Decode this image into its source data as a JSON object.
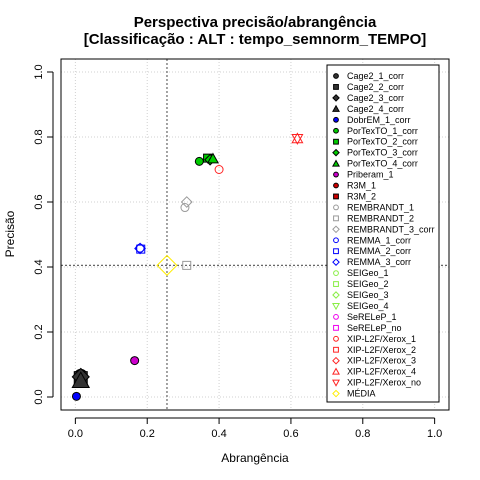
{
  "chart_data": {
    "type": "scatter",
    "title_line1": "Perspectiva precisão/abrangência",
    "title_line2": "[Classificação : ALT : tempo_semnorm_TEMPO]",
    "xlabel": "Abrangência",
    "ylabel": "Precisão",
    "xlim": [
      -0.04,
      1.04
    ],
    "ylim": [
      -0.04,
      1.04
    ],
    "xticks": [
      "0.0",
      "0.2",
      "0.4",
      "0.6",
      "0.8",
      "1.0"
    ],
    "yticks": [
      "0.0",
      "0.2",
      "0.4",
      "0.6",
      "0.8",
      "1.0"
    ],
    "grid": true,
    "reference_lines": {
      "x": 0.255,
      "y": 0.405
    },
    "legend_position": "top-right",
    "series": [
      {
        "name": "Cage2_1_corr",
        "color": "#333333",
        "shape": "circle",
        "filled": true,
        "x": 0.015,
        "y": 0.065
      },
      {
        "name": "Cage2_2_corr",
        "color": "#333333",
        "shape": "square",
        "filled": true,
        "x": 0.015,
        "y": 0.058
      },
      {
        "name": "Cage2_3_corr",
        "color": "#333333",
        "shape": "diamond",
        "filled": true,
        "x": 0.015,
        "y": 0.062
      },
      {
        "name": "Cage2_4_corr",
        "color": "#333333",
        "shape": "triangle-up",
        "filled": true,
        "x": 0.015,
        "y": 0.05
      },
      {
        "name": "DobrEM_1_corr",
        "color": "#0000ff",
        "shape": "circle",
        "filled": true,
        "x": 0.003,
        "y": 0.002
      },
      {
        "name": "PorTexTO_1_corr",
        "color": "#00cc00",
        "shape": "circle",
        "filled": true,
        "x": 0.345,
        "y": 0.725
      },
      {
        "name": "PorTexTO_2_corr",
        "color": "#00cc00",
        "shape": "square",
        "filled": true,
        "x": 0.368,
        "y": 0.735
      },
      {
        "name": "PorTexTO_3_corr",
        "color": "#00cc00",
        "shape": "diamond",
        "filled": true,
        "x": 0.375,
        "y": 0.73
      },
      {
        "name": "PorTexTO_4_corr",
        "color": "#00cc00",
        "shape": "triangle-up",
        "filled": true,
        "x": 0.383,
        "y": 0.733
      },
      {
        "name": "Priberam_1",
        "color": "#cc00cc",
        "shape": "circle",
        "filled": true,
        "x": 0.165,
        "y": 0.112
      },
      {
        "name": "R3M_1",
        "color": "#cc0000",
        "shape": "circle",
        "filled": true,
        "x": null,
        "y": null
      },
      {
        "name": "R3M_2",
        "color": "#cc0000",
        "shape": "square",
        "filled": true,
        "x": null,
        "y": null
      },
      {
        "name": "REMBRANDT_1",
        "color": "#999999",
        "shape": "circle",
        "filled": false,
        "x": 0.305,
        "y": 0.583
      },
      {
        "name": "REMBRANDT_2",
        "color": "#999999",
        "shape": "square",
        "filled": false,
        "x": 0.31,
        "y": 0.405
      },
      {
        "name": "REMBRANDT_3_corr",
        "color": "#999999",
        "shape": "diamond",
        "filled": false,
        "x": 0.31,
        "y": 0.6
      },
      {
        "name": "REMMA_1_corr",
        "color": "#0000ff",
        "shape": "circle",
        "filled": false,
        "x": 0.18,
        "y": 0.458
      },
      {
        "name": "REMMA_2_corr",
        "color": "#0000ff",
        "shape": "square",
        "filled": false,
        "x": 0.182,
        "y": 0.455
      },
      {
        "name": "REMMA_3_corr",
        "color": "#0000ff",
        "shape": "diamond",
        "filled": false,
        "x": 0.18,
        "y": 0.457
      },
      {
        "name": "SEIGeo_1",
        "color": "#88ee44",
        "shape": "circle",
        "filled": false,
        "x": null,
        "y": null
      },
      {
        "name": "SEIGeo_2",
        "color": "#88ee44",
        "shape": "square",
        "filled": false,
        "x": null,
        "y": null
      },
      {
        "name": "SEIGeo_3",
        "color": "#88ee44",
        "shape": "diamond",
        "filled": false,
        "x": null,
        "y": null
      },
      {
        "name": "SEIGeo_4",
        "color": "#88ee44",
        "shape": "triangle-down",
        "filled": false,
        "x": null,
        "y": null
      },
      {
        "name": "SeRELeP_1",
        "color": "#ee00ee",
        "shape": "circle",
        "filled": false,
        "x": null,
        "y": null
      },
      {
        "name": "SeRELeP_no",
        "color": "#ee00ee",
        "shape": "square",
        "filled": false,
        "x": null,
        "y": null
      },
      {
        "name": "XIP-L2F/Xerox_1",
        "color": "#ff2222",
        "shape": "circle",
        "filled": false,
        "x": 0.4,
        "y": 0.7
      },
      {
        "name": "XIP-L2F/Xerox_2",
        "color": "#ff2222",
        "shape": "square",
        "filled": false,
        "x": null,
        "y": null
      },
      {
        "name": "XIP-L2F/Xerox_3",
        "color": "#ff2222",
        "shape": "diamond",
        "filled": false,
        "x": null,
        "y": null
      },
      {
        "name": "XIP-L2F/Xerox_4",
        "color": "#ff2222",
        "shape": "triangle-up",
        "filled": false,
        "x": 0.618,
        "y": 0.795
      },
      {
        "name": "XIP-L2F/Xerox_no",
        "color": "#ff2222",
        "shape": "triangle-down",
        "filled": false,
        "x": 0.618,
        "y": 0.795
      },
      {
        "name": "MÉDIA",
        "color": "#ffee00",
        "shape": "diamond-large",
        "filled": false,
        "x": 0.255,
        "y": 0.405
      }
    ]
  }
}
